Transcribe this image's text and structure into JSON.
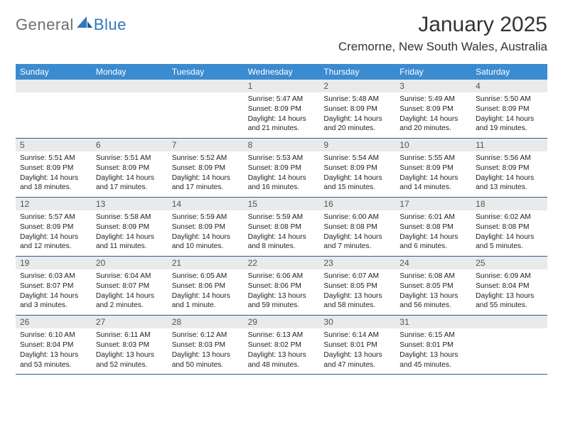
{
  "logo": {
    "text1": "General",
    "text2": "Blue"
  },
  "header": {
    "title": "January 2025",
    "location": "Cremorne, New South Wales, Australia"
  },
  "colors": {
    "header_bg": "#3b8bd0",
    "header_text": "#ffffff",
    "daynum_bg": "#e9eaec",
    "daynum_text": "#555555",
    "border": "#2a5d8f",
    "body_text": "#222222",
    "logo_gray": "#6e6e6e",
    "logo_blue": "#2f78bd"
  },
  "day_names": [
    "Sunday",
    "Monday",
    "Tuesday",
    "Wednesday",
    "Thursday",
    "Friday",
    "Saturday"
  ],
  "labels": {
    "sunrise": "Sunrise:",
    "sunset": "Sunset:",
    "daylight": "Daylight:"
  },
  "weeks": [
    [
      null,
      null,
      null,
      {
        "n": "1",
        "sr": "5:47 AM",
        "ss": "8:09 PM",
        "dl": "14 hours and 21 minutes."
      },
      {
        "n": "2",
        "sr": "5:48 AM",
        "ss": "8:09 PM",
        "dl": "14 hours and 20 minutes."
      },
      {
        "n": "3",
        "sr": "5:49 AM",
        "ss": "8:09 PM",
        "dl": "14 hours and 20 minutes."
      },
      {
        "n": "4",
        "sr": "5:50 AM",
        "ss": "8:09 PM",
        "dl": "14 hours and 19 minutes."
      }
    ],
    [
      {
        "n": "5",
        "sr": "5:51 AM",
        "ss": "8:09 PM",
        "dl": "14 hours and 18 minutes."
      },
      {
        "n": "6",
        "sr": "5:51 AM",
        "ss": "8:09 PM",
        "dl": "14 hours and 17 minutes."
      },
      {
        "n": "7",
        "sr": "5:52 AM",
        "ss": "8:09 PM",
        "dl": "14 hours and 17 minutes."
      },
      {
        "n": "8",
        "sr": "5:53 AM",
        "ss": "8:09 PM",
        "dl": "14 hours and 16 minutes."
      },
      {
        "n": "9",
        "sr": "5:54 AM",
        "ss": "8:09 PM",
        "dl": "14 hours and 15 minutes."
      },
      {
        "n": "10",
        "sr": "5:55 AM",
        "ss": "8:09 PM",
        "dl": "14 hours and 14 minutes."
      },
      {
        "n": "11",
        "sr": "5:56 AM",
        "ss": "8:09 PM",
        "dl": "14 hours and 13 minutes."
      }
    ],
    [
      {
        "n": "12",
        "sr": "5:57 AM",
        "ss": "8:09 PM",
        "dl": "14 hours and 12 minutes."
      },
      {
        "n": "13",
        "sr": "5:58 AM",
        "ss": "8:09 PM",
        "dl": "14 hours and 11 minutes."
      },
      {
        "n": "14",
        "sr": "5:59 AM",
        "ss": "8:09 PM",
        "dl": "14 hours and 10 minutes."
      },
      {
        "n": "15",
        "sr": "5:59 AM",
        "ss": "8:08 PM",
        "dl": "14 hours and 8 minutes."
      },
      {
        "n": "16",
        "sr": "6:00 AM",
        "ss": "8:08 PM",
        "dl": "14 hours and 7 minutes."
      },
      {
        "n": "17",
        "sr": "6:01 AM",
        "ss": "8:08 PM",
        "dl": "14 hours and 6 minutes."
      },
      {
        "n": "18",
        "sr": "6:02 AM",
        "ss": "8:08 PM",
        "dl": "14 hours and 5 minutes."
      }
    ],
    [
      {
        "n": "19",
        "sr": "6:03 AM",
        "ss": "8:07 PM",
        "dl": "14 hours and 3 minutes."
      },
      {
        "n": "20",
        "sr": "6:04 AM",
        "ss": "8:07 PM",
        "dl": "14 hours and 2 minutes."
      },
      {
        "n": "21",
        "sr": "6:05 AM",
        "ss": "8:06 PM",
        "dl": "14 hours and 1 minute."
      },
      {
        "n": "22",
        "sr": "6:06 AM",
        "ss": "8:06 PM",
        "dl": "13 hours and 59 minutes."
      },
      {
        "n": "23",
        "sr": "6:07 AM",
        "ss": "8:05 PM",
        "dl": "13 hours and 58 minutes."
      },
      {
        "n": "24",
        "sr": "6:08 AM",
        "ss": "8:05 PM",
        "dl": "13 hours and 56 minutes."
      },
      {
        "n": "25",
        "sr": "6:09 AM",
        "ss": "8:04 PM",
        "dl": "13 hours and 55 minutes."
      }
    ],
    [
      {
        "n": "26",
        "sr": "6:10 AM",
        "ss": "8:04 PM",
        "dl": "13 hours and 53 minutes."
      },
      {
        "n": "27",
        "sr": "6:11 AM",
        "ss": "8:03 PM",
        "dl": "13 hours and 52 minutes."
      },
      {
        "n": "28",
        "sr": "6:12 AM",
        "ss": "8:03 PM",
        "dl": "13 hours and 50 minutes."
      },
      {
        "n": "29",
        "sr": "6:13 AM",
        "ss": "8:02 PM",
        "dl": "13 hours and 48 minutes."
      },
      {
        "n": "30",
        "sr": "6:14 AM",
        "ss": "8:01 PM",
        "dl": "13 hours and 47 minutes."
      },
      {
        "n": "31",
        "sr": "6:15 AM",
        "ss": "8:01 PM",
        "dl": "13 hours and 45 minutes."
      },
      null
    ]
  ]
}
